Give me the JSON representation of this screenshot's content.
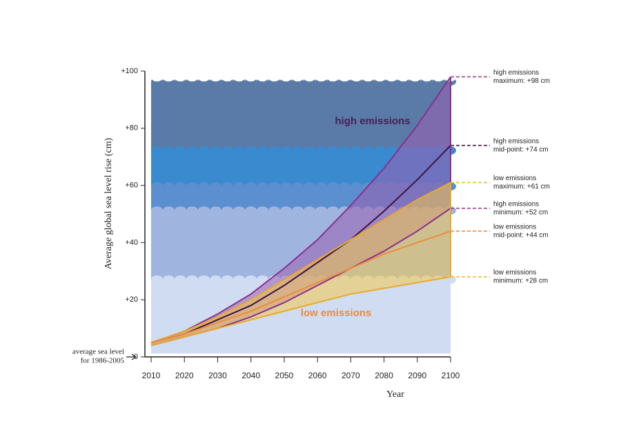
{
  "chart_data": {
    "type": "band-line",
    "x_label": "Year",
    "y_label": "Average global sea level rise (cm)",
    "x": [
      2010,
      2020,
      2030,
      2040,
      2050,
      2060,
      2070,
      2080,
      2090,
      2100
    ],
    "xlim": [
      2010,
      2100
    ],
    "xticks": [
      2010,
      2020,
      2030,
      2040,
      2050,
      2060,
      2070,
      2080,
      2090,
      2100
    ],
    "ylim": [
      0,
      100
    ],
    "yticks": [
      0,
      {
        "value": 20,
        "label": "+20"
      },
      {
        "value": 40,
        "label": "+40"
      },
      {
        "value": 60,
        "label": "+60"
      },
      {
        "value": 80,
        "label": "+80"
      },
      {
        "value": 100,
        "label": "+100"
      }
    ],
    "baseline_note": [
      "average sea level",
      "for 1986-2005"
    ],
    "bands": [
      {
        "name": "high emissions",
        "name_color": "#4a1f55",
        "fill": "#9a5fb0",
        "color": "#8a2f8c",
        "mid_color": "#3d1340",
        "upper": [
          5,
          9,
          15,
          22,
          31,
          41,
          53,
          66,
          81,
          98
        ],
        "mid": [
          5,
          8,
          13,
          18,
          25,
          33,
          41,
          51,
          62,
          74
        ],
        "lower": [
          4,
          7,
          10,
          14,
          19,
          25,
          31,
          37,
          44,
          52
        ]
      },
      {
        "name": "low emissions",
        "name_color": "#f08a3a",
        "fill": "#f3c94a",
        "color": "#e8a92a",
        "mid_color": "#f08a3a",
        "upper": [
          5,
          9,
          14,
          20,
          27,
          34,
          41,
          48,
          55,
          61
        ],
        "mid": [
          5,
          8,
          12,
          16,
          21,
          26,
          31,
          36,
          40,
          44
        ],
        "lower": [
          4,
          7,
          10,
          13,
          16,
          19,
          22,
          24,
          26,
          28
        ]
      }
    ],
    "annotations": [
      {
        "text": [
          "high emissions",
          "maximum: +98 cm"
        ],
        "y": 98,
        "color": "#9b3f8f"
      },
      {
        "text": [
          "high emissions",
          "mid-point: +74 cm"
        ],
        "y": 74,
        "color": "#3d1340"
      },
      {
        "text": [
          "low emissions",
          "maximum: +61 cm"
        ],
        "y": 61,
        "color": "#f2b531"
      },
      {
        "text": [
          "high emissions",
          "minimum: +52 cm"
        ],
        "y": 52,
        "color": "#9b3f8f"
      },
      {
        "text": [
          "low emissions",
          "mid-point: +44 cm"
        ],
        "y": 44,
        "color": "#f08a3a"
      },
      {
        "text": [
          "low emissions",
          "minimum: +28 cm"
        ],
        "y": 28,
        "color": "#f2b531"
      }
    ]
  }
}
